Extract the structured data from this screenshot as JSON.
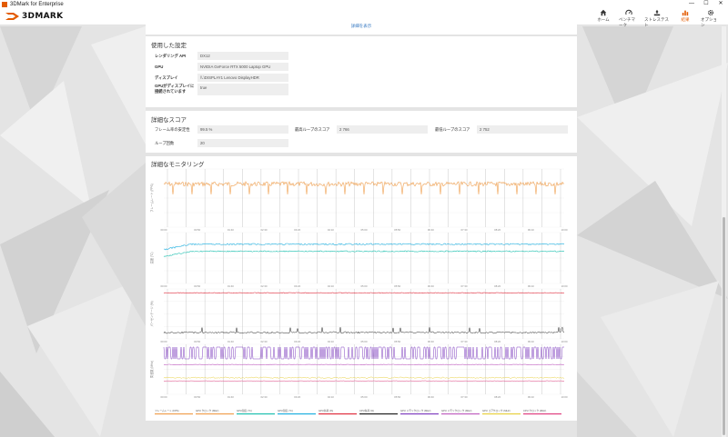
{
  "window": {
    "title": "3DMark for Enterprise"
  },
  "brand": {
    "logo_text": "3DMARK"
  },
  "nav": [
    {
      "label": "ホーム",
      "icon": "home-icon"
    },
    {
      "label": "ベンチマーク",
      "icon": "gauge-icon"
    },
    {
      "label": "ストレステスト",
      "icon": "stress-icon"
    },
    {
      "label": "結果",
      "icon": "bar-chart-icon",
      "active": true
    },
    {
      "label": "オプション",
      "icon": "gear-icon"
    }
  ],
  "top_panel": {
    "link": "詳細を表示"
  },
  "settings": {
    "title": "使用した設定",
    "rows": [
      {
        "label": "レンダリング API",
        "value": "DX12"
      },
      {
        "label": "GPU",
        "value": "NVIDIA GeForce RTX 5000 Laptop GPU"
      },
      {
        "label": "ディスプレイ",
        "value": "\\\\.\\DISPLAY1 Lenovo DisplayHDR"
      },
      {
        "label": "GPUがディスプレイに接続されています",
        "value": "true"
      }
    ]
  },
  "scores": {
    "title": "詳細なスコア",
    "frame_stability_label": "フレーム率の安定性",
    "frame_stability_value": "99.5 %",
    "best_loop_label": "最高ループのスコア",
    "best_loop_value": "2 766",
    "worst_loop_label": "最低ループのスコア",
    "worst_loop_value": "2 752",
    "loop_count_label": "ループ回数",
    "loop_count_value": "20"
  },
  "monitoring": {
    "title": "詳細なモニタリング",
    "legend": [
      {
        "label": "フレームレート (FPS)",
        "color": "#f0a050"
      },
      {
        "label": "GPU クロック (MHz)",
        "color": "#f0a050"
      },
      {
        "label": "GPU温度 (°C)",
        "color": "#20c0b0"
      },
      {
        "label": "GPU温度 (°C)",
        "color": "#20b0e0"
      },
      {
        "label": "GPU負荷 (%)",
        "color": "#e03040"
      },
      {
        "label": "CPU負荷 (%)",
        "color": "#222222"
      },
      {
        "label": "GPU メモリクロック (MHz)",
        "color": "#8040c0"
      },
      {
        "label": "GPU メモリクロック (MHz)",
        "color": "#c060c0"
      },
      {
        "label": "GPU コアクロック (MHz)",
        "color": "#e8d040"
      },
      {
        "label": "CPU クロック (MHz)",
        "color": "#e04080"
      }
    ],
    "y_axis_labels": [
      "フレームレート (FPS)",
      "温度 (°C)",
      "パーセンテージ (%)",
      "周波数 (MHz)"
    ],
    "x_ticks": [
      "00:00",
      "00:50",
      "01:40",
      "02:30",
      "03:20",
      "04:10",
      "05:00",
      "05:50",
      "06:40",
      "07:30",
      "08:20",
      "09:10",
      "10:00"
    ]
  },
  "colors": {
    "accent": "#e35b00",
    "link": "#2f74c0"
  }
}
